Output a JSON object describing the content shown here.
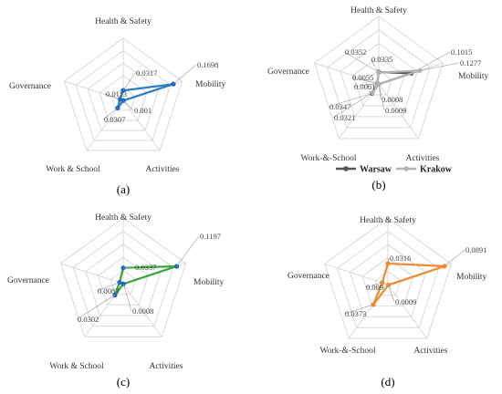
{
  "chart_data": [
    {
      "type": "radar",
      "panel_label": "(a)",
      "axes": [
        "Health & Safety",
        "Mobility",
        "Activities",
        "Work & School",
        "Governance"
      ],
      "range": [
        0,
        0.2
      ],
      "grid_levels": 5,
      "colors": {
        "line": "#2a7dc9",
        "marker": "#1a66c0"
      },
      "series": [
        {
          "name": "",
          "values": [
            0.0317,
            0.1698,
            0.001,
            0.0307,
            0.0113
          ]
        }
      ]
    },
    {
      "type": "radar",
      "panel_label": "(b)",
      "axes": [
        "Health & Safety",
        "Mobility",
        "Activities",
        "Work-&-School",
        "Governance"
      ],
      "range": [
        0,
        0.2
      ],
      "grid_levels": 5,
      "legend": {
        "position": "bottom",
        "entries": [
          "Warsaw",
          "Krakow"
        ]
      },
      "colors": {
        "Warsaw": "#555555",
        "Krakow": "#b3b3b3"
      },
      "series": [
        {
          "name": "Warsaw",
          "values": [
            0.0352,
            0.1015,
            0.0008,
            0.0347,
            0.0055
          ]
        },
        {
          "name": "Krakow",
          "values": [
            0.0335,
            0.1277,
            0.0009,
            0.0321,
            0.0061
          ]
        }
      ]
    },
    {
      "type": "radar",
      "panel_label": "(c)",
      "axes": [
        "Health & Safety",
        "Mobility",
        "Activities",
        "Work & School",
        "Governance"
      ],
      "range": [
        0,
        0.14
      ],
      "grid_levels": 5,
      "colors": {
        "line": "#3aa53a",
        "marker": "#1a66c0"
      },
      "series": [
        {
          "name": "",
          "values": [
            0.0337,
            0.1197,
            0.0008,
            0.0302,
            0.0083
          ]
        }
      ]
    },
    {
      "type": "radar",
      "panel_label": "(d)",
      "axes": [
        "Health & Safety",
        "Mobility",
        "Activities",
        "Work-&-School",
        "Governance"
      ],
      "range": [
        0,
        0.1
      ],
      "grid_levels": 5,
      "colors": {
        "line": "#ef8a2e",
        "marker": "#ef8a2e"
      },
      "series": [
        {
          "name": "",
          "values": [
            0.0316,
            0.0891,
            0.0009,
            0.0373,
            0.009
          ]
        }
      ]
    }
  ]
}
